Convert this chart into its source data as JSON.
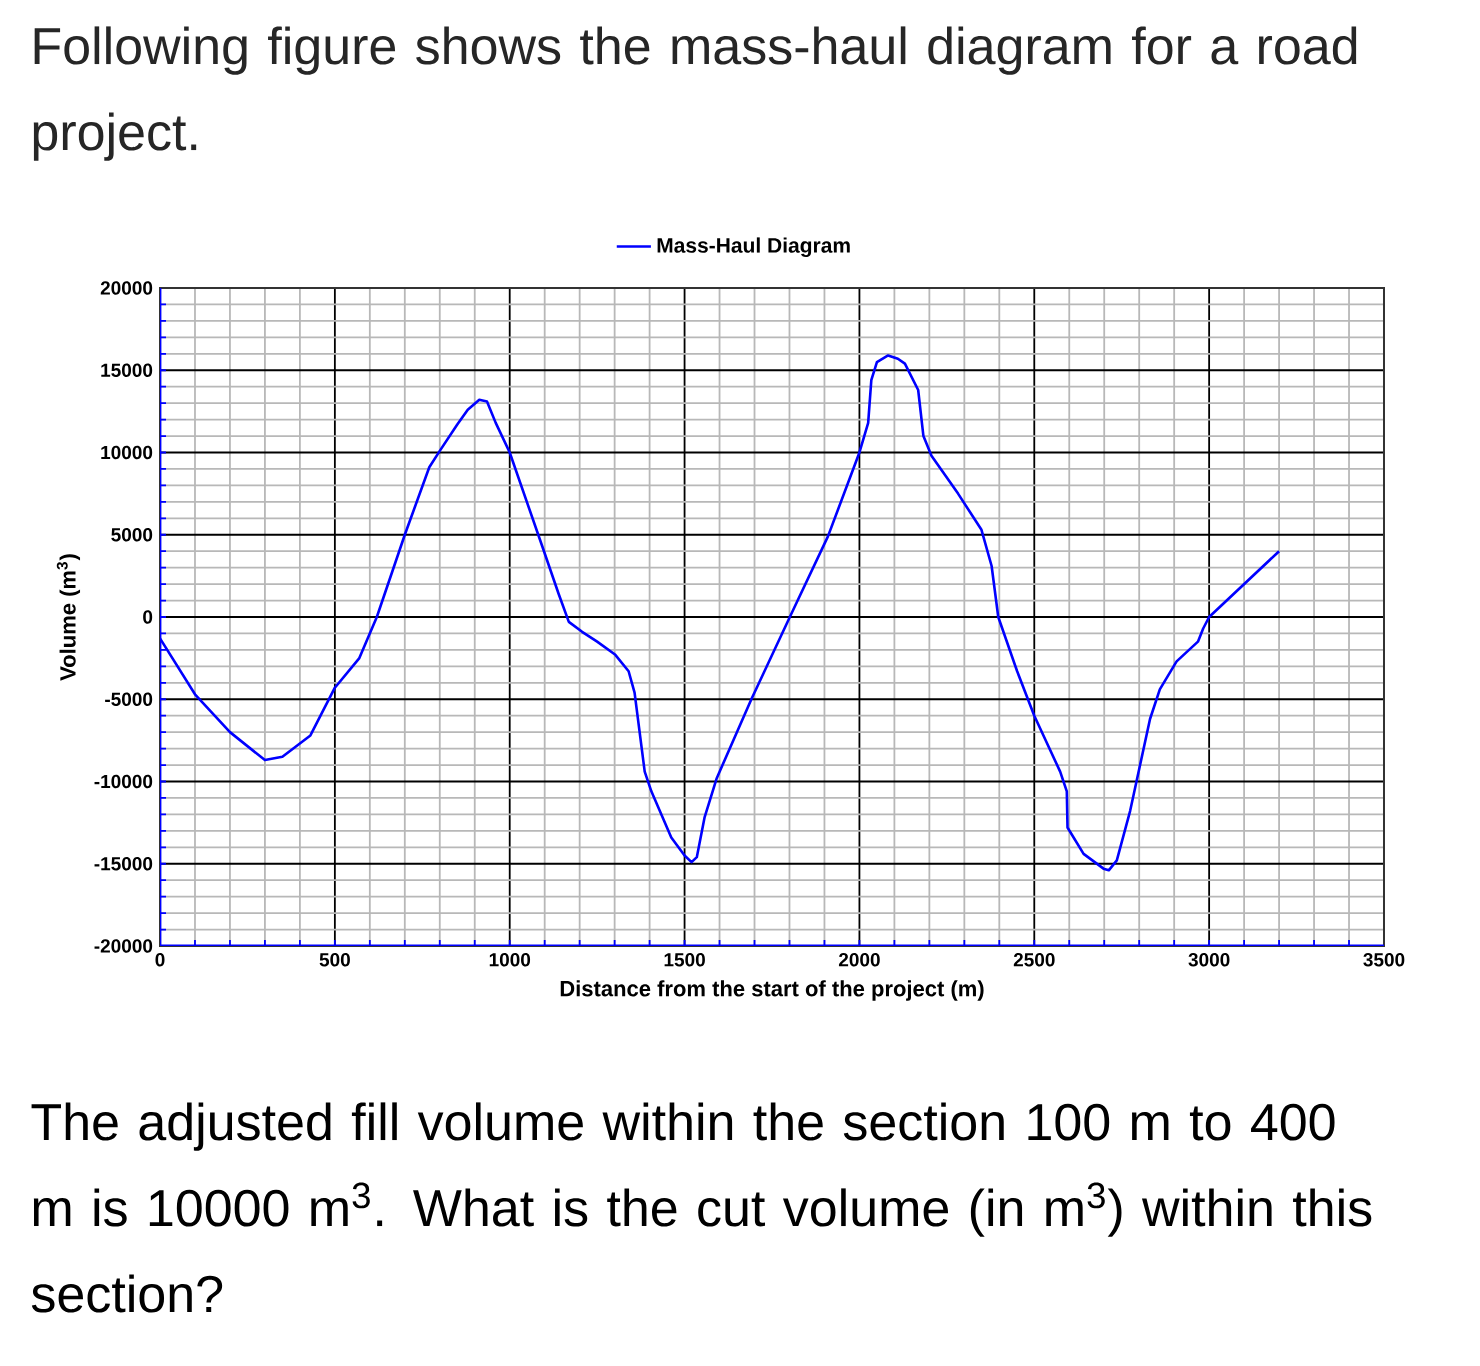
{
  "chart_data": {
    "type": "line",
    "title": "Following figure shows the mass-haul diagram for a road project.",
    "xlabel": "Distance from the start of the project (m)",
    "ylabel": "Volume (m$^{3}$)",
    "annotations": [
      "The adjusted fill volume within the section 100 m to 400 m is 10000 m$^{3}$. What is the cut volume (in m$^{3}$) within this section?"
    ],
    "x": [
      0,
      50,
      100,
      200,
      300,
      350,
      430,
      500,
      570,
      620,
      700,
      770,
      800,
      850,
      880,
      913,
      935,
      960,
      1000,
      1093,
      1140,
      1169,
      1207,
      1250,
      1302,
      1340,
      1357,
      1386,
      1405,
      1462,
      1500,
      1520,
      1535,
      1557,
      1592,
      1691,
      1801,
      1910,
      2000,
      2025,
      2034,
      2050,
      2082,
      2110,
      2130,
      2168,
      2183,
      2206,
      2282,
      2349,
      2378,
      2397,
      2451,
      2500,
      2574,
      2593,
      2595,
      2641,
      2698,
      2713,
      2736,
      2774,
      2831,
      2859,
      2907,
      2968,
      2983,
      3000,
      3200
    ],
    "series": [
      {
        "name": "Mass-Haul Diagram",
        "color": "#0000ff",
        "values": [
          -1300,
          -3000,
          -4700,
          -7000,
          -8700,
          -8500,
          -7200,
          -4300,
          -2500,
          0,
          5000,
          9100,
          10100,
          11700,
          12600,
          13200,
          13100,
          11800,
          10000,
          4300,
          1400,
          -300,
          -900,
          -1500,
          -2300,
          -3300,
          -4600,
          -9400,
          -10600,
          -13400,
          -14500,
          -14900,
          -14600,
          -12200,
          -9800,
          -5000,
          0,
          4900,
          10000,
          11800,
          14400,
          15500,
          15900,
          15700,
          15400,
          13800,
          11000,
          9800,
          7500,
          5300,
          3100,
          0,
          -3300,
          -6000,
          -9400,
          -10600,
          -12800,
          -14400,
          -15300,
          -15400,
          -14800,
          -11800,
          -6200,
          -4400,
          -2700,
          -1500,
          -700,
          0,
          4000
        ]
      }
    ],
    "xlim": [
      0,
      3500
    ],
    "ylim": [
      -20000,
      20000
    ],
    "xticks": [
      0,
      500,
      1000,
      1500,
      2000,
      2500,
      3000,
      3500
    ],
    "yticks": [
      -20000,
      -15000,
      -10000,
      -5000,
      0,
      5000,
      10000,
      15000,
      20000
    ],
    "grid": true,
    "legend": "top"
  }
}
